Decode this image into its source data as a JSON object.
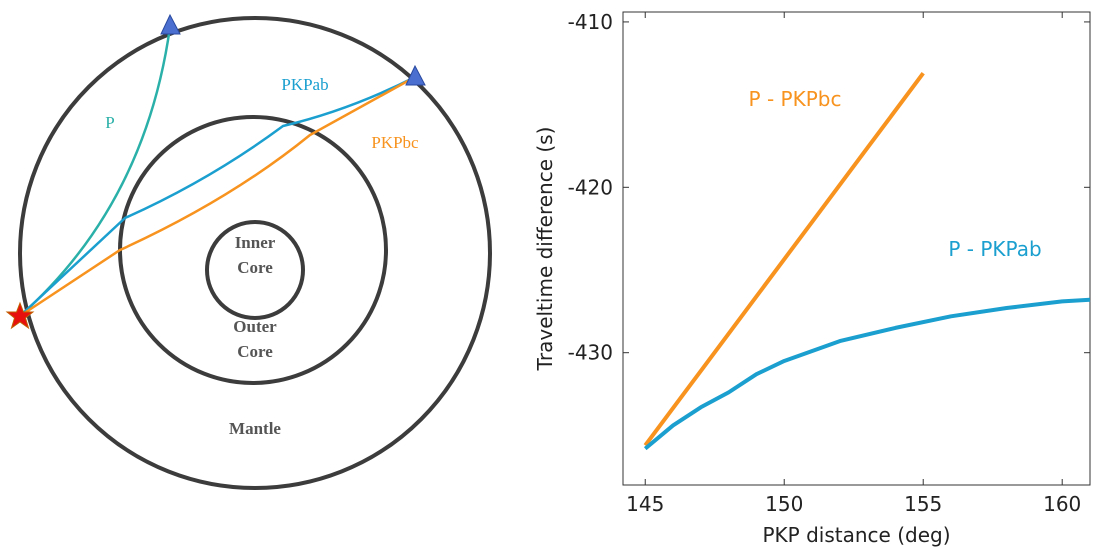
{
  "diagram": {
    "labels": {
      "p": "P",
      "pkpab": "PKPab",
      "pkpbc": "PKPbc",
      "inner_core": [
        "Inner",
        "Core"
      ],
      "outer_core": [
        "Outer",
        "Core"
      ],
      "mantle": "Mantle"
    }
  },
  "chart_data": {
    "type": "line",
    "xlabel": "PKP distance (deg)",
    "ylabel": "Traveltime difference (s)",
    "xlim": [
      144.2,
      161
    ],
    "ylim": [
      -438,
      -409.4
    ],
    "xticks": [
      145,
      150,
      155,
      160
    ],
    "yticks": [
      -430,
      -420,
      -410
    ],
    "grid": false,
    "series": [
      {
        "name": "P - PKPbc",
        "color": "#f7931e",
        "x": [
          145,
          147,
          149,
          151,
          153,
          155
        ],
        "values": [
          -435.6,
          -431.1,
          -426.6,
          -422.1,
          -417.6,
          -413.1
        ]
      },
      {
        "name": "P - PKPab",
        "color": "#1a9fcf",
        "x": [
          145,
          146,
          147,
          148,
          149,
          150,
          152,
          154,
          156,
          158,
          160,
          161
        ],
        "values": [
          -435.8,
          -434.4,
          -433.3,
          -432.4,
          -431.3,
          -430.5,
          -429.3,
          -428.5,
          -427.8,
          -427.3,
          -426.9,
          -426.8
        ]
      }
    ]
  }
}
